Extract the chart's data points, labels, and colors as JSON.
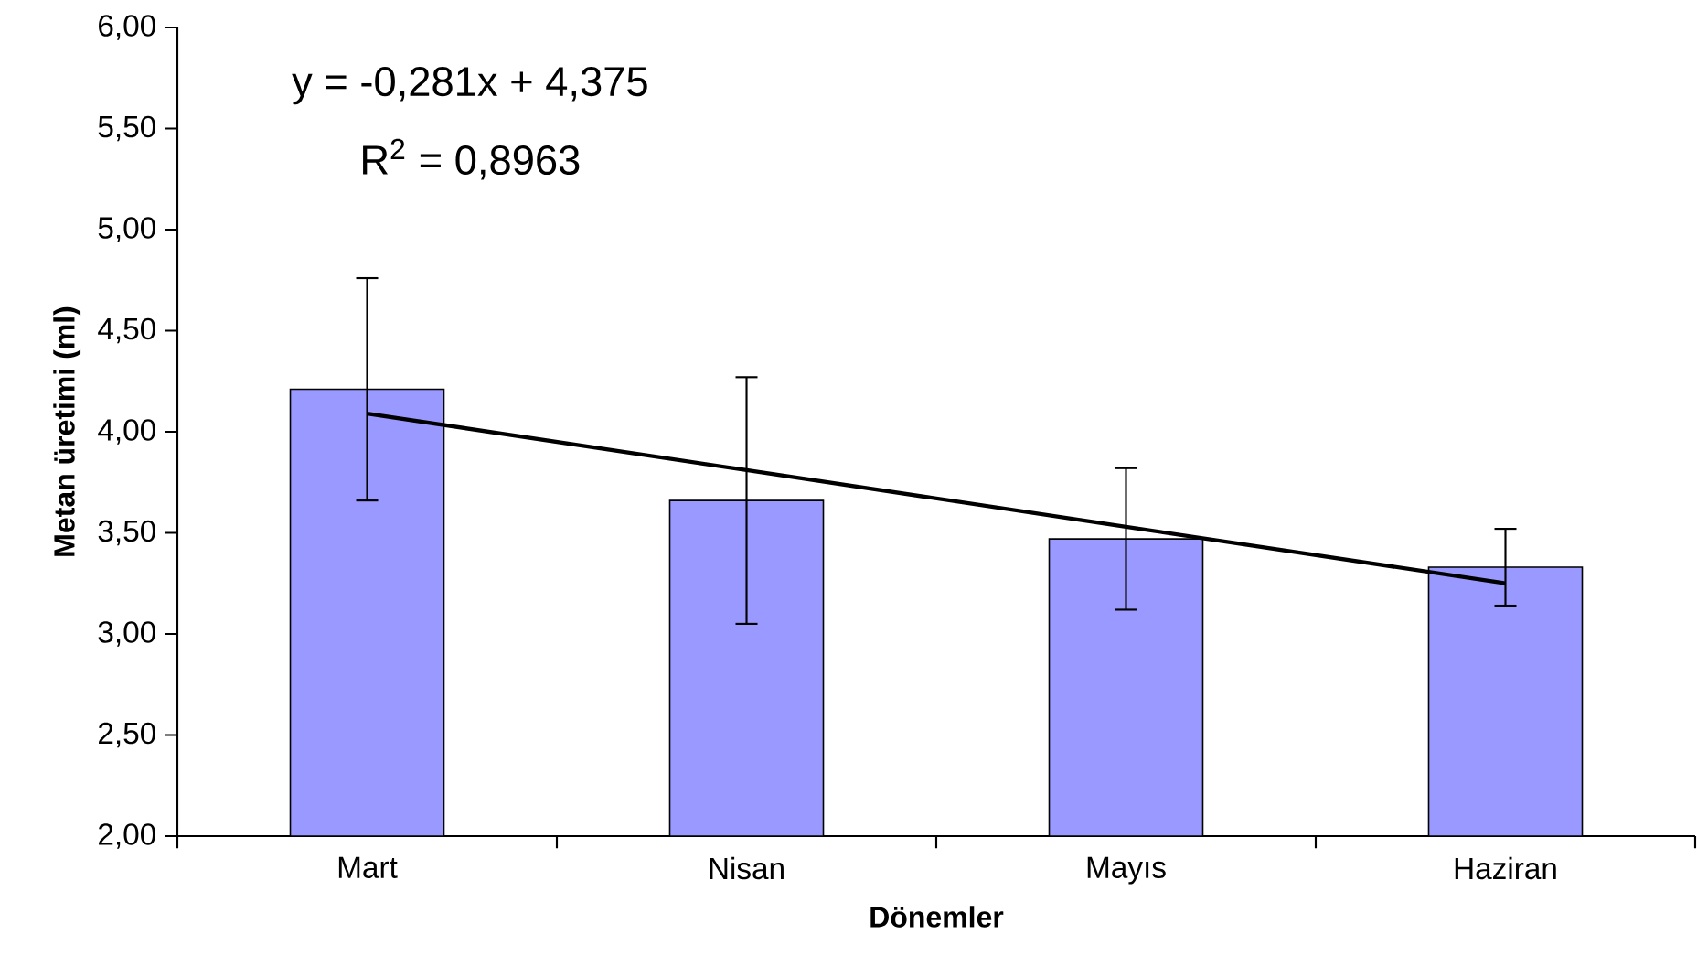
{
  "chart_data": {
    "type": "bar",
    "xlabel": "Dönemler",
    "ylabel": "Metan üretimi (ml)",
    "categories": [
      "Mart",
      "Nisan",
      "Mayıs",
      "Haziran"
    ],
    "series": [
      {
        "color": "#9999ff",
        "values": [
          4.21,
          3.66,
          3.47,
          3.33
        ],
        "errors": [
          0.55,
          0.61,
          0.35,
          0.19
        ]
      },
      {
        "type": "line",
        "color": "#000000",
        "values": [
          4.09,
          3.81,
          3.53,
          3.25
        ]
      }
    ],
    "ylim": [
      2,
      6
    ],
    "yticks": [
      {
        "value": 2,
        "label": "2,00"
      },
      {
        "value": 2.5,
        "label": "2,50"
      },
      {
        "value": 3,
        "label": "3,00"
      },
      {
        "value": 3.5,
        "label": "3,50"
      },
      {
        "value": 4,
        "label": "4,00"
      },
      {
        "value": 4.5,
        "label": "4,50"
      },
      {
        "value": 5,
        "label": "5,00"
      },
      {
        "value": 5.5,
        "label": "5,50"
      },
      {
        "value": 6,
        "label": "6,00"
      }
    ],
    "annotations": [
      "y = -0,281x + 4,375",
      "R$^{2}$ = 0,8963"
    ]
  }
}
